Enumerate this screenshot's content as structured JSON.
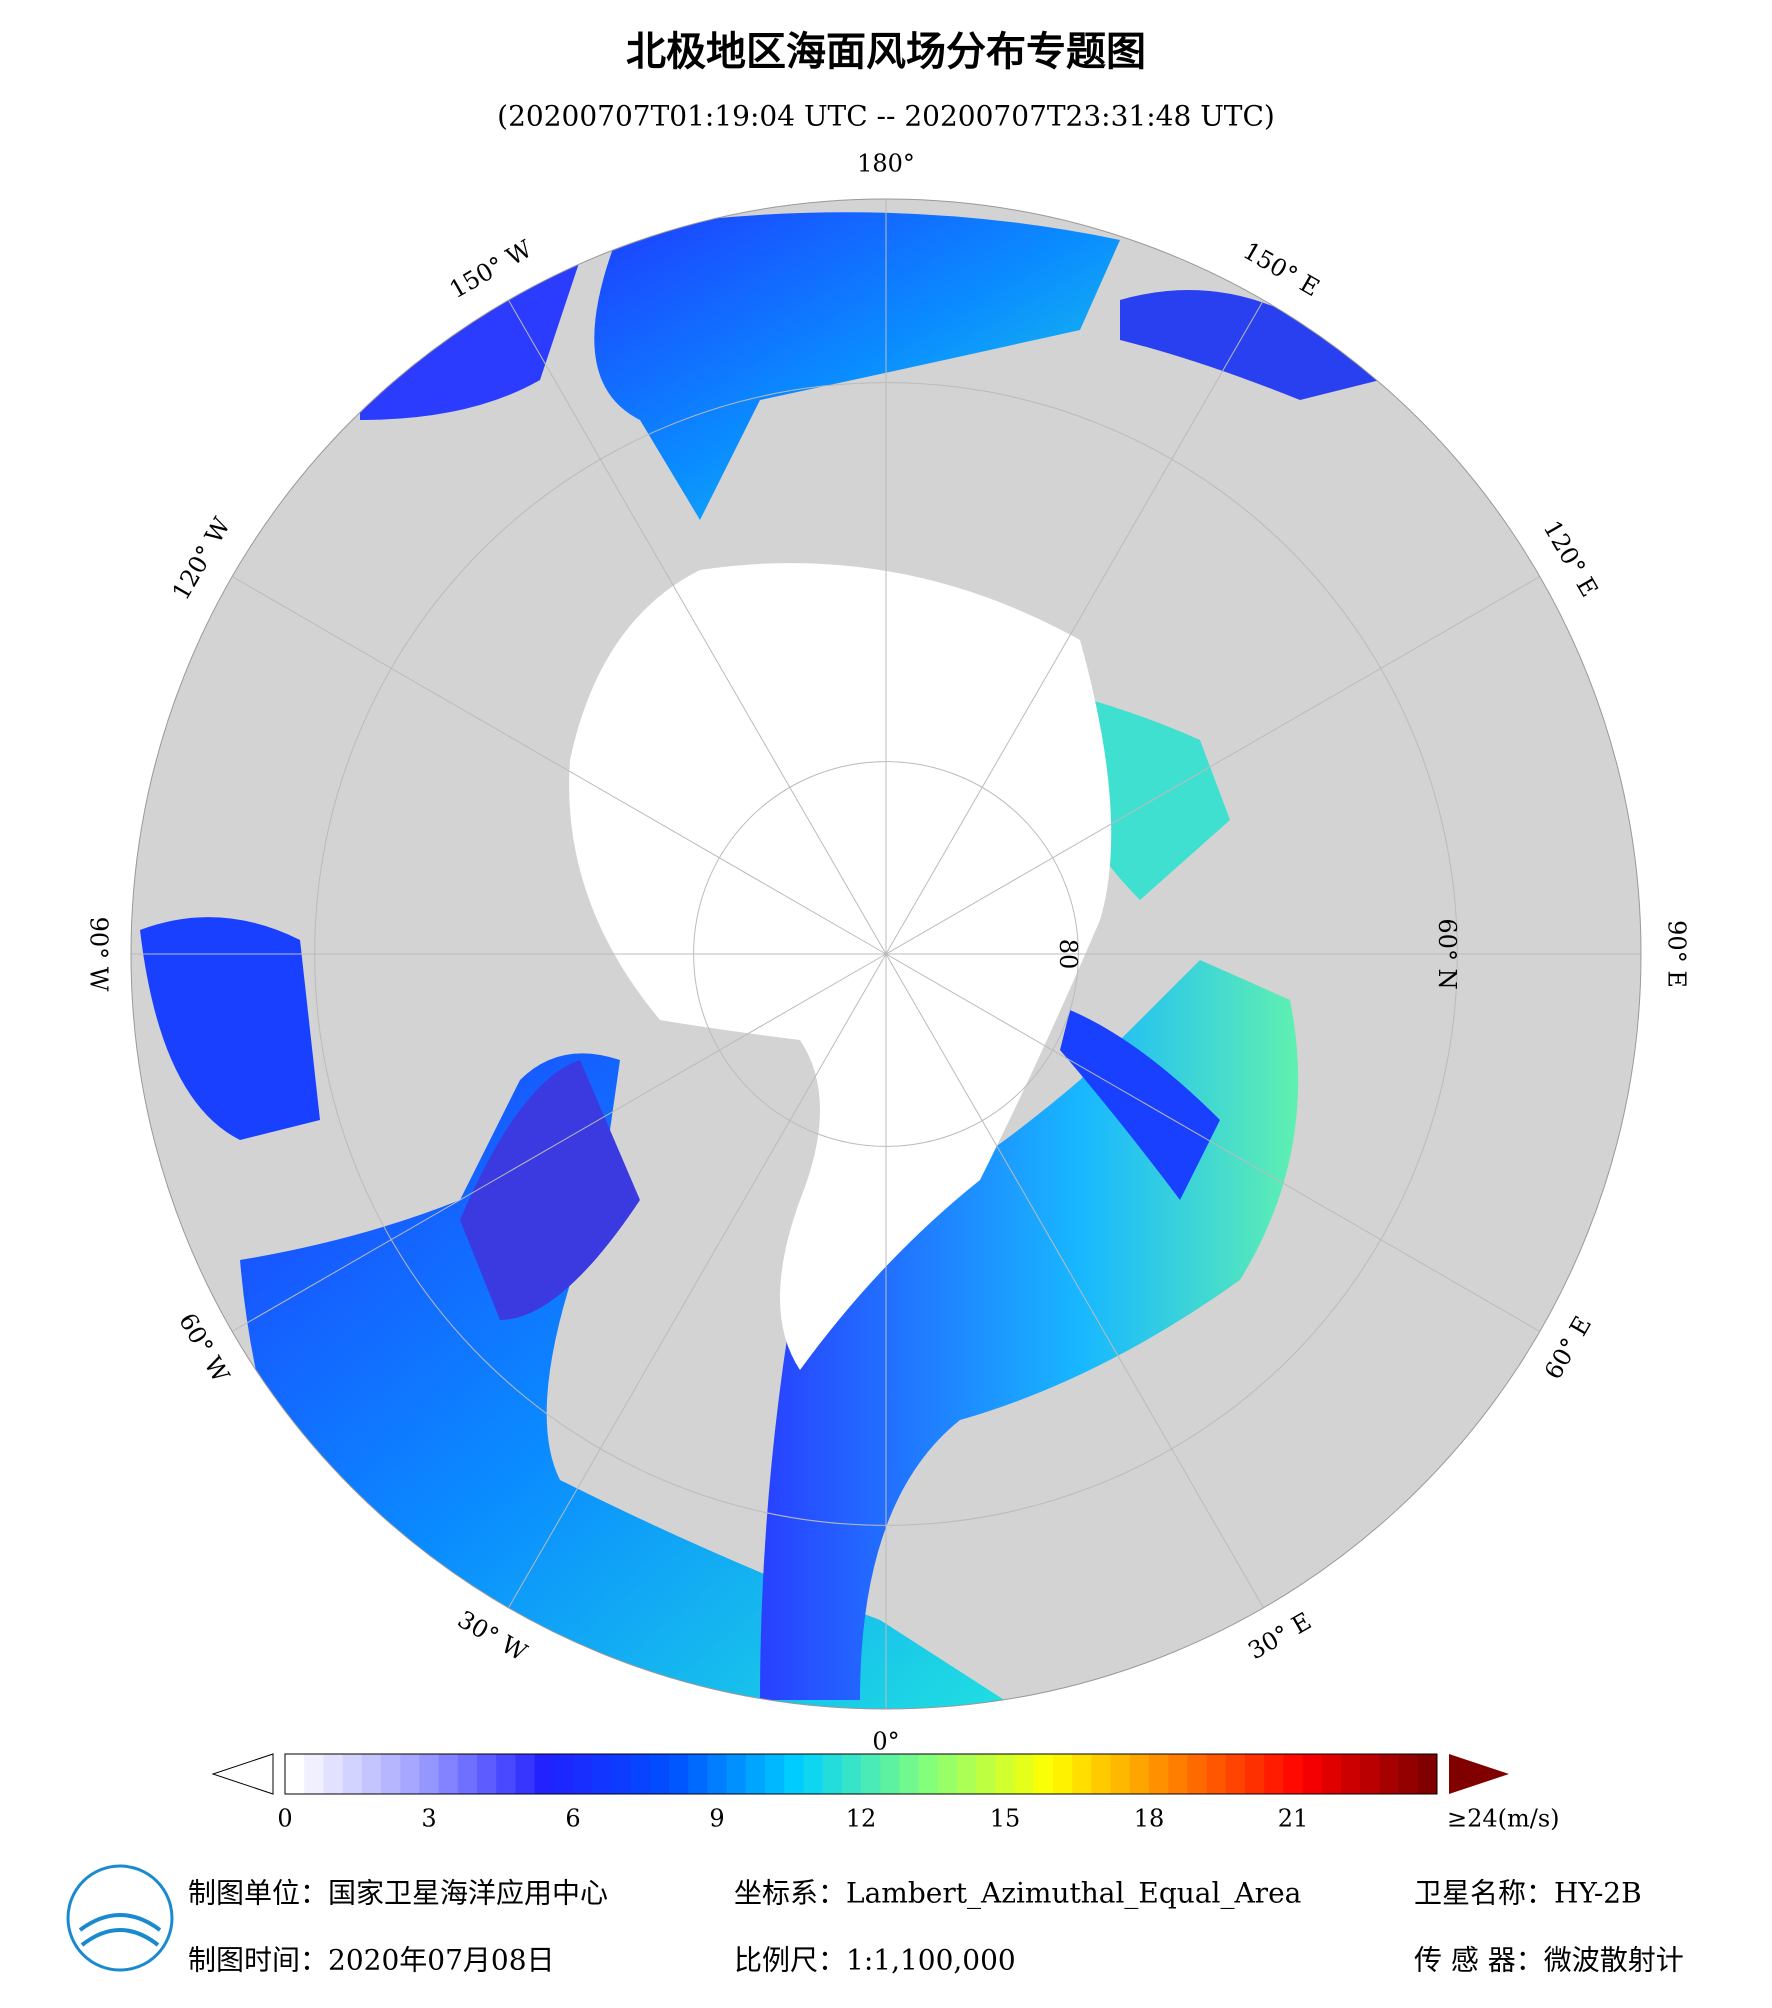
{
  "title": "北极地区海面风场分布专题图",
  "subtitle": "(20200707T01:19:04 UTC -- 20200707T23:31:48 UTC)",
  "map": {
    "lon_ticks": [
      {
        "value": 180,
        "label": "180°"
      },
      {
        "value": 150,
        "label": "150° E"
      },
      {
        "value": 120,
        "label": "120° E"
      },
      {
        "value": 90,
        "label": "90° E"
      },
      {
        "value": 60,
        "label": "60° E"
      },
      {
        "value": 30,
        "label": "30° E"
      },
      {
        "value": 0,
        "label": "0°"
      },
      {
        "value": -30,
        "label": "30° W"
      },
      {
        "value": -60,
        "label": "60° W"
      },
      {
        "value": -90,
        "label": "90° W"
      },
      {
        "value": -120,
        "label": "120° W"
      },
      {
        "value": -150,
        "label": "150° W"
      }
    ],
    "lat_ticks": [
      {
        "value": 60,
        "label": "60° N"
      },
      {
        "value": 80,
        "label": "80"
      }
    ],
    "latlim": [
      50,
      90
    ]
  },
  "colorbar": {
    "lim": [
      0,
      24
    ],
    "ticks": [
      0,
      3,
      6,
      9,
      12,
      15,
      18,
      21,
      {
        "value": 24,
        "label": "≥24(m/s)"
      }
    ],
    "colors": [
      "#ffffff",
      "#9f9fff",
      "#2020ff",
      "#0050ff",
      "#00d0ff",
      "#80ff80",
      "#ffff00",
      "#ff8000",
      "#ff0000",
      "#800000"
    ]
  },
  "footer": {
    "unit": "制图单位：国家卫星海洋应用中心",
    "crs": "坐标系：Lambert_Azimuthal_Equal_Area",
    "satellite": "卫星名称：HY-2B",
    "date": "制图时间：2020年07月08日",
    "scale": "比例尺：1:1,100,000",
    "sensor": "传 感 器：微波散射计"
  }
}
